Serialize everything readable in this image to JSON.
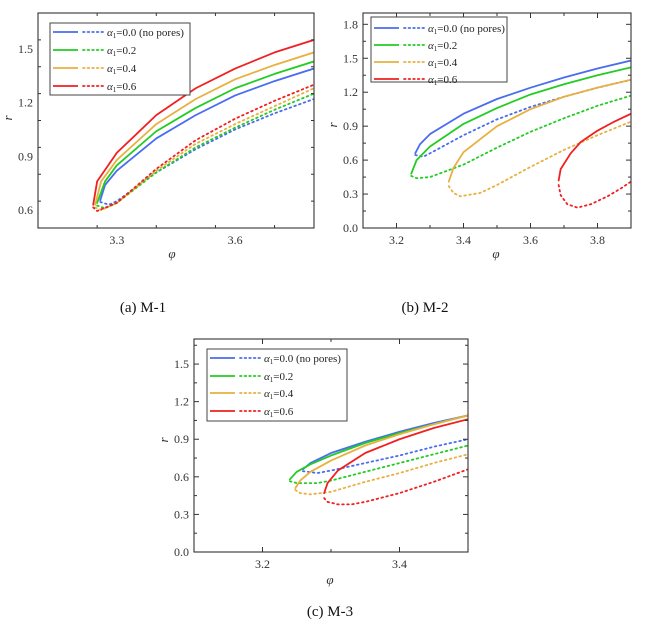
{
  "figure": {
    "legend_entries": [
      {
        "label": "0.0 (no pores)",
        "prefix": "α",
        "sub": "1",
        "color": "#4a6cf0"
      },
      {
        "label": "0.2",
        "prefix": "α",
        "sub": "1",
        "color": "#22cc22"
      },
      {
        "label": "0.4",
        "prefix": "α",
        "sub": "1",
        "color": "#e8b040"
      },
      {
        "label": "0.6",
        "prefix": "α",
        "sub": "1",
        "color": "#f02020"
      }
    ],
    "line_styles": {
      "stable": "solid",
      "unstable": "dotted"
    }
  },
  "chart_data": [
    {
      "type": "line",
      "panel": "a",
      "caption": "(a) M-1",
      "xlabel": "φ",
      "ylabel": "r",
      "xlim": [
        3.1,
        3.8
      ],
      "ylim": [
        0.5,
        1.7
      ],
      "xticks": [
        3.3,
        3.6
      ],
      "xtick_labels": [
        "3.3",
        "3.6"
      ],
      "xminor_step": 0.15,
      "yticks": [
        0.6,
        0.9,
        1.2,
        1.5
      ],
      "ytick_labels": [
        "0.6",
        "0.9",
        "1.2",
        "1.5"
      ],
      "yminor_step": 0.15,
      "legend_position": "top-left",
      "grid": false,
      "series": [
        {
          "name": "α1=0.0 (no pores)",
          "color": "#4a6cf0",
          "solid": [
            [
              3.258,
              0.655
            ],
            [
              3.27,
              0.74
            ],
            [
              3.3,
              0.82
            ],
            [
              3.4,
              1.0
            ],
            [
              3.5,
              1.13
            ],
            [
              3.6,
              1.24
            ],
            [
              3.7,
              1.32
            ],
            [
              3.8,
              1.39
            ]
          ],
          "dotted": [
            [
              3.258,
              0.645
            ],
            [
              3.28,
              0.63
            ],
            [
              3.3,
              0.65
            ],
            [
              3.4,
              0.81
            ],
            [
              3.5,
              0.94
            ],
            [
              3.6,
              1.05
            ],
            [
              3.7,
              1.14
            ],
            [
              3.8,
              1.22
            ]
          ]
        },
        {
          "name": "α1=0.2",
          "color": "#22cc22",
          "solid": [
            [
              3.25,
              0.64
            ],
            [
              3.27,
              0.76
            ],
            [
              3.3,
              0.85
            ],
            [
              3.4,
              1.04
            ],
            [
              3.5,
              1.17
            ],
            [
              3.6,
              1.28
            ],
            [
              3.7,
              1.36
            ],
            [
              3.8,
              1.43
            ]
          ],
          "dotted": [
            [
              3.25,
              0.625
            ],
            [
              3.27,
              0.61
            ],
            [
              3.3,
              0.64
            ],
            [
              3.4,
              0.81
            ],
            [
              3.5,
              0.95
            ],
            [
              3.6,
              1.06
            ],
            [
              3.7,
              1.16
            ],
            [
              3.8,
              1.25
            ]
          ]
        },
        {
          "name": "α1=0.4",
          "color": "#e8b040",
          "solid": [
            [
              3.245,
              0.63
            ],
            [
              3.26,
              0.76
            ],
            [
              3.3,
              0.88
            ],
            [
              3.4,
              1.08
            ],
            [
              3.5,
              1.22
            ],
            [
              3.6,
              1.33
            ],
            [
              3.7,
              1.41
            ],
            [
              3.8,
              1.48
            ]
          ],
          "dotted": [
            [
              3.245,
              0.615
            ],
            [
              3.26,
              0.6
            ],
            [
              3.3,
              0.64
            ],
            [
              3.4,
              0.82
            ],
            [
              3.5,
              0.97
            ],
            [
              3.6,
              1.08
            ],
            [
              3.7,
              1.18
            ],
            [
              3.8,
              1.28
            ]
          ]
        },
        {
          "name": "α1=0.6",
          "color": "#f02020",
          "solid": [
            [
              3.24,
              0.63
            ],
            [
              3.25,
              0.76
            ],
            [
              3.3,
              0.92
            ],
            [
              3.4,
              1.13
            ],
            [
              3.5,
              1.28
            ],
            [
              3.6,
              1.39
            ],
            [
              3.7,
              1.48
            ],
            [
              3.8,
              1.55
            ]
          ],
          "dotted": [
            [
              3.24,
              0.615
            ],
            [
              3.25,
              0.595
            ],
            [
              3.3,
              0.64
            ],
            [
              3.4,
              0.83
            ],
            [
              3.5,
              0.99
            ],
            [
              3.6,
              1.11
            ],
            [
              3.7,
              1.21
            ],
            [
              3.8,
              1.3
            ]
          ]
        }
      ]
    },
    {
      "type": "line",
      "panel": "b",
      "caption": "(b) M-2",
      "xlabel": "φ",
      "ylabel": "r",
      "xlim": [
        3.1,
        3.9
      ],
      "ylim": [
        0.0,
        1.9
      ],
      "xticks": [
        3.2,
        3.4,
        3.6,
        3.8
      ],
      "xtick_labels": [
        "3.2",
        "3.4",
        "3.6",
        "3.8"
      ],
      "xminor_step": 0.1,
      "yticks": [
        0.0,
        0.3,
        0.6,
        0.9,
        1.2,
        1.5,
        1.8
      ],
      "ytick_labels": [
        "0.0",
        "0.3",
        "0.6",
        "0.9",
        "1.2",
        "1.5",
        "1.8"
      ],
      "yminor_step": 0.15,
      "legend_position": "top-left",
      "grid": false,
      "series": [
        {
          "name": "α1=0.0 (no pores)",
          "color": "#4a6cf0",
          "solid": [
            [
              3.256,
              0.66
            ],
            [
              3.27,
              0.74
            ],
            [
              3.3,
              0.83
            ],
            [
              3.4,
              1.01
            ],
            [
              3.5,
              1.14
            ],
            [
              3.6,
              1.24
            ],
            [
              3.7,
              1.33
            ],
            [
              3.8,
              1.41
            ],
            [
              3.9,
              1.48
            ]
          ],
          "dotted": [
            [
              3.256,
              0.645
            ],
            [
              3.28,
              0.63
            ],
            [
              3.3,
              0.66
            ],
            [
              3.4,
              0.82
            ],
            [
              3.5,
              0.96
            ],
            [
              3.6,
              1.07
            ],
            [
              3.7,
              1.16
            ],
            [
              3.8,
              1.24
            ],
            [
              3.9,
              1.31
            ]
          ]
        },
        {
          "name": "α1=0.2",
          "color": "#22cc22",
          "solid": [
            [
              3.244,
              0.48
            ],
            [
              3.26,
              0.6
            ],
            [
              3.3,
              0.72
            ],
            [
              3.4,
              0.92
            ],
            [
              3.5,
              1.06
            ],
            [
              3.6,
              1.18
            ],
            [
              3.7,
              1.27
            ],
            [
              3.8,
              1.35
            ],
            [
              3.9,
              1.42
            ]
          ],
          "dotted": [
            [
              3.244,
              0.46
            ],
            [
              3.26,
              0.44
            ],
            [
              3.3,
              0.45
            ],
            [
              3.4,
              0.56
            ],
            [
              3.5,
              0.71
            ],
            [
              3.6,
              0.85
            ],
            [
              3.7,
              0.97
            ],
            [
              3.8,
              1.08
            ],
            [
              3.9,
              1.17
            ]
          ]
        },
        {
          "name": "α1=0.4",
          "color": "#e8b040",
          "solid": [
            [
              3.356,
              0.41
            ],
            [
              3.37,
              0.53
            ],
            [
              3.4,
              0.67
            ],
            [
              3.5,
              0.9
            ],
            [
              3.6,
              1.05
            ],
            [
              3.7,
              1.16
            ],
            [
              3.8,
              1.24
            ],
            [
              3.9,
              1.31
            ]
          ],
          "dotted": [
            [
              3.356,
              0.37
            ],
            [
              3.37,
              0.31
            ],
            [
              3.39,
              0.28
            ],
            [
              3.45,
              0.31
            ],
            [
              3.5,
              0.38
            ],
            [
              3.6,
              0.54
            ],
            [
              3.7,
              0.69
            ],
            [
              3.8,
              0.82
            ],
            [
              3.9,
              0.94
            ]
          ]
        },
        {
          "name": "α1=0.6",
          "color": "#f02020",
          "solid": [
            [
              3.684,
              0.42
            ],
            [
              3.69,
              0.52
            ],
            [
              3.72,
              0.66
            ],
            [
              3.75,
              0.76
            ],
            [
              3.8,
              0.86
            ],
            [
              3.85,
              0.94
            ],
            [
              3.9,
              1.01
            ]
          ],
          "dotted": [
            [
              3.684,
              0.38
            ],
            [
              3.69,
              0.29
            ],
            [
              3.71,
              0.21
            ],
            [
              3.74,
              0.18
            ],
            [
              3.78,
              0.21
            ],
            [
              3.83,
              0.28
            ],
            [
              3.87,
              0.35
            ],
            [
              3.9,
              0.41
            ]
          ]
        }
      ]
    },
    {
      "type": "line",
      "panel": "c",
      "caption": "(c) M-3",
      "xlabel": "φ",
      "ylabel": "r",
      "xlim": [
        3.1,
        3.5
      ],
      "ylim": [
        0.0,
        1.7
      ],
      "xticks": [
        3.2,
        3.4
      ],
      "xtick_labels": [
        "3.2",
        "3.4"
      ],
      "xminor_step": 0.1,
      "yticks": [
        0.0,
        0.3,
        0.6,
        0.9,
        1.2,
        1.5
      ],
      "ytick_labels": [
        "0.0",
        "0.3",
        "0.6",
        "0.9",
        "1.2",
        "1.5"
      ],
      "yminor_step": 0.15,
      "legend_position": "top-left",
      "grid": false,
      "series": [
        {
          "name": "α1=0.0 (no pores)",
          "color": "#4a6cf0",
          "solid": [
            [
              3.259,
              0.66
            ],
            [
              3.27,
              0.71
            ],
            [
              3.3,
              0.79
            ],
            [
              3.35,
              0.88
            ],
            [
              3.4,
              0.96
            ],
            [
              3.45,
              1.03
            ],
            [
              3.5,
              1.09
            ]
          ],
          "dotted": [
            [
              3.259,
              0.645
            ],
            [
              3.28,
              0.63
            ],
            [
              3.3,
              0.65
            ],
            [
              3.35,
              0.71
            ],
            [
              3.4,
              0.77
            ],
            [
              3.45,
              0.84
            ],
            [
              3.5,
              0.9
            ]
          ]
        },
        {
          "name": "α1=0.2",
          "color": "#22cc22",
          "solid": [
            [
              3.24,
              0.58
            ],
            [
              3.25,
              0.64
            ],
            [
              3.27,
              0.7
            ],
            [
              3.3,
              0.77
            ],
            [
              3.35,
              0.87
            ],
            [
              3.4,
              0.95
            ],
            [
              3.45,
              1.02
            ],
            [
              3.5,
              1.09
            ]
          ],
          "dotted": [
            [
              3.24,
              0.565
            ],
            [
              3.25,
              0.55
            ],
            [
              3.28,
              0.55
            ],
            [
              3.3,
              0.57
            ],
            [
              3.35,
              0.64
            ],
            [
              3.4,
              0.71
            ],
            [
              3.45,
              0.78
            ],
            [
              3.5,
              0.85
            ]
          ]
        },
        {
          "name": "α1=0.4",
          "color": "#e8b040",
          "solid": [
            [
              3.248,
              0.51
            ],
            [
              3.255,
              0.57
            ],
            [
              3.27,
              0.64
            ],
            [
              3.3,
              0.73
            ],
            [
              3.35,
              0.85
            ],
            [
              3.4,
              0.94
            ],
            [
              3.45,
              1.02
            ],
            [
              3.5,
              1.09
            ]
          ],
          "dotted": [
            [
              3.248,
              0.495
            ],
            [
              3.255,
              0.47
            ],
            [
              3.27,
              0.46
            ],
            [
              3.3,
              0.48
            ],
            [
              3.35,
              0.56
            ],
            [
              3.4,
              0.63
            ],
            [
              3.45,
              0.71
            ],
            [
              3.5,
              0.78
            ]
          ]
        },
        {
          "name": "α1=0.6",
          "color": "#f02020",
          "solid": [
            [
              3.29,
              0.47
            ],
            [
              3.295,
              0.55
            ],
            [
              3.31,
              0.65
            ],
            [
              3.35,
              0.79
            ],
            [
              3.4,
              0.9
            ],
            [
              3.45,
              0.99
            ],
            [
              3.5,
              1.06
            ]
          ],
          "dotted": [
            [
              3.29,
              0.43
            ],
            [
              3.295,
              0.4
            ],
            [
              3.31,
              0.38
            ],
            [
              3.33,
              0.38
            ],
            [
              3.35,
              0.4
            ],
            [
              3.4,
              0.47
            ],
            [
              3.45,
              0.56
            ],
            [
              3.5,
              0.66
            ]
          ]
        }
      ]
    }
  ]
}
